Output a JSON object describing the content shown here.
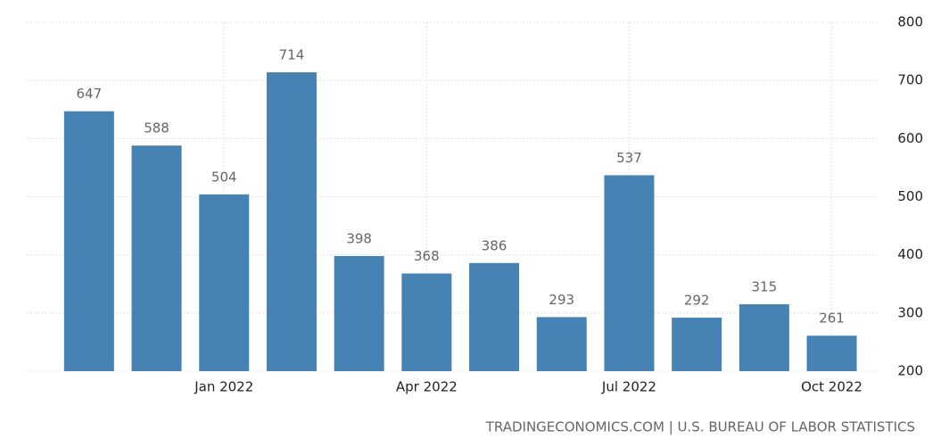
{
  "chart_data": {
    "type": "bar",
    "categories": [
      null,
      null,
      "Jan 2022",
      null,
      null,
      "Apr 2022",
      null,
      null,
      "Jul 2022",
      null,
      null,
      "Oct 2022"
    ],
    "values": [
      647,
      588,
      504,
      714,
      398,
      368,
      386,
      293,
      537,
      292,
      315,
      261
    ],
    "color": "#4682b4",
    "ylim": [
      200,
      800
    ],
    "yticks": [
      200,
      300,
      400,
      500,
      600,
      700,
      800
    ],
    "grid": true,
    "source": "TRADINGECONOMICS.COM | U.S. BUREAU OF LABOR STATISTICS"
  }
}
